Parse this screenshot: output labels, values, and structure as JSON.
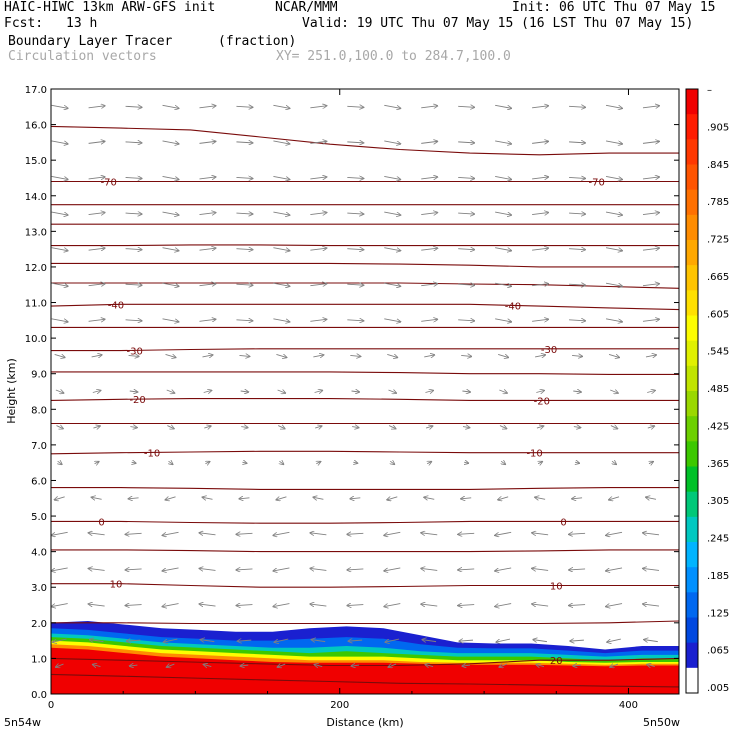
{
  "header": {
    "model": "HAIC-HIWC 13km ARW-GFS init",
    "org": "NCAR/MMM",
    "init": "Init: 06 UTC Thu 07 May 15",
    "fcst_label": "Fcst:",
    "fcst_value": "13 h",
    "valid": "Valid: 19 UTC Thu 07 May 15 (16 LST Thu 07 May 15)",
    "field": "Boundary Layer Tracer",
    "units": "(fraction)",
    "vectors": "Circulation vectors",
    "xy": "XY= 251.0,100.0 to 284.7,100.0"
  },
  "chart_data": {
    "type": "heatmap",
    "xlabel": "Distance (km)",
    "ylabel": "Height (km)",
    "xlim": [
      0,
      435
    ],
    "ylim": [
      0,
      17
    ],
    "x_ticks": [
      0,
      200,
      400
    ],
    "y_ticks": [
      "0.0",
      "1.0",
      "2.0",
      "3.0",
      "4.0",
      "5.0",
      "6.0",
      "7.0",
      "8.0",
      "9.0",
      "10.0",
      "11.0",
      "12.0",
      "13.0",
      "14.0",
      "15.0",
      "16.0",
      "17.0"
    ],
    "x_endpoints": {
      "left": "5n54w",
      "right": "5n50w"
    },
    "colorbar": {
      "labels": [
        "–",
        ".905",
        ".845",
        ".785",
        ".725",
        ".665",
        ".605",
        ".545",
        ".485",
        ".425",
        ".365",
        ".305",
        ".245",
        ".185",
        ".125",
        ".065",
        ".005"
      ],
      "colors": [
        "#f00000",
        "#ff1c00",
        "#ff3800",
        "#ff5400",
        "#ff7000",
        "#ff8c00",
        "#ffa800",
        "#ffc400",
        "#ffe000",
        "#fdfd00",
        "#e0f000",
        "#c0e400",
        "#9ad800",
        "#6ccf00",
        "#3cc800",
        "#00c028",
        "#00c878",
        "#00c8c0",
        "#00b4ff",
        "#0090ff",
        "#0068f0",
        "#0048e0",
        "#1a20d0",
        "#ffffff"
      ]
    },
    "tracer_layers": [
      {
        "level": 0.02,
        "color": "#1a20d0",
        "top_km": [
          2.0,
          2.05,
          1.95,
          1.85,
          1.8,
          1.75,
          1.75,
          1.85,
          1.9,
          1.85,
          1.65,
          1.45,
          1.42,
          1.42,
          1.35,
          1.25,
          1.35,
          1.35
        ]
      },
      {
        "level": 0.1,
        "color": "#0068f0",
        "top_km": [
          1.85,
          1.8,
          1.7,
          1.6,
          1.55,
          1.5,
          1.5,
          1.55,
          1.6,
          1.55,
          1.4,
          1.3,
          1.28,
          1.28,
          1.22,
          1.15,
          1.22,
          1.22
        ]
      },
      {
        "level": 0.3,
        "color": "#00c8c0",
        "top_km": [
          1.7,
          1.65,
          1.55,
          1.45,
          1.4,
          1.35,
          1.3,
          1.3,
          1.35,
          1.3,
          1.2,
          1.15,
          1.15,
          1.15,
          1.1,
          1.05,
          1.1,
          1.1
        ]
      },
      {
        "level": 0.5,
        "color": "#3cc800",
        "top_km": [
          1.6,
          1.55,
          1.45,
          1.35,
          1.3,
          1.25,
          1.2,
          1.15,
          1.2,
          1.15,
          1.1,
          1.05,
          1.05,
          1.05,
          1.0,
          0.95,
          1.0,
          1.0
        ]
      },
      {
        "level": 0.65,
        "color": "#fdfd00",
        "top_km": [
          1.5,
          1.45,
          1.35,
          1.25,
          1.2,
          1.15,
          1.1,
          1.05,
          1.05,
          1.05,
          1.0,
          0.95,
          0.95,
          0.95,
          0.9,
          0.88,
          0.9,
          0.9
        ]
      },
      {
        "level": 0.8,
        "color": "#ff8c00",
        "top_km": [
          1.4,
          1.35,
          1.25,
          1.15,
          1.1,
          1.05,
          1.0,
          0.95,
          0.95,
          0.95,
          0.9,
          0.88,
          0.88,
          0.88,
          0.85,
          0.82,
          0.85,
          0.85
        ]
      },
      {
        "level": 0.95,
        "color": "#f00000",
        "top_km": [
          1.3,
          1.25,
          1.15,
          1.05,
          1.0,
          0.95,
          0.9,
          0.88,
          0.88,
          0.88,
          0.85,
          0.82,
          0.82,
          0.82,
          0.8,
          0.78,
          0.8,
          0.8
        ]
      }
    ],
    "temperature_contours": [
      {
        "label": "-70",
        "heights_km": [
          14.4,
          14.4,
          14.4,
          14.4,
          14.4,
          14.4,
          14.4,
          14.4,
          14.4,
          14.4
        ],
        "labels_at_x": [
          40,
          378
        ]
      },
      {
        "label": "-40",
        "heights_km": [
          10.9,
          10.95,
          10.95,
          10.95,
          10.95,
          10.95,
          10.95,
          10.9,
          10.85,
          10.8
        ],
        "labels_at_x": [
          45,
          320
        ]
      },
      {
        "label": "-30",
        "heights_km": [
          9.65,
          9.65,
          9.68,
          9.7,
          9.7,
          9.7,
          9.7,
          9.7,
          9.7,
          9.7
        ],
        "labels_at_x": [
          58,
          345
        ]
      },
      {
        "label": "-20",
        "heights_km": [
          8.25,
          8.28,
          8.3,
          8.3,
          8.3,
          8.28,
          8.25,
          8.25,
          8.25,
          8.25
        ],
        "labels_at_x": [
          60,
          340
        ]
      },
      {
        "label": "-10",
        "heights_km": [
          6.75,
          6.78,
          6.8,
          6.82,
          6.82,
          6.8,
          6.78,
          6.78,
          6.78,
          6.78
        ],
        "labels_at_x": [
          70,
          335
        ]
      },
      {
        "label": "0",
        "heights_km": [
          4.85,
          4.85,
          4.82,
          4.8,
          4.8,
          4.82,
          4.85,
          4.85,
          4.85,
          4.85
        ],
        "labels_at_x": [
          35,
          355
        ]
      },
      {
        "label": "10",
        "heights_km": [
          3.1,
          3.1,
          3.05,
          3.0,
          3.0,
          3.02,
          3.05,
          3.05,
          3.05,
          3.05
        ],
        "labels_at_x": [
          45,
          350
        ]
      },
      {
        "label": "20",
        "heights_km": [
          1.0,
          0.95,
          0.9,
          0.85,
          0.8,
          0.8,
          0.85,
          0.95,
          0.95,
          1.0
        ],
        "labels_at_x": [
          350
        ]
      }
    ],
    "unlabeled_contours_km": [
      [
        15.95,
        15.9,
        15.85,
        15.65,
        15.45,
        15.3,
        15.2,
        15.15,
        15.2,
        15.2
      ],
      [
        13.75,
        13.75,
        13.75,
        13.75,
        13.75,
        13.75,
        13.75,
        13.75,
        13.75,
        13.75
      ],
      [
        13.2,
        13.2,
        13.2,
        13.2,
        13.2,
        13.2,
        13.2,
        13.2,
        13.2,
        13.2
      ],
      [
        12.6,
        12.6,
        12.62,
        12.62,
        12.6,
        12.6,
        12.6,
        12.6,
        12.6,
        12.6
      ],
      [
        12.1,
        12.1,
        12.1,
        12.1,
        12.1,
        12.08,
        12.05,
        12.0,
        12.0,
        12.0
      ],
      [
        11.55,
        11.55,
        11.55,
        11.55,
        11.55,
        11.55,
        11.52,
        11.5,
        11.45,
        11.4
      ],
      [
        10.3,
        10.3,
        10.3,
        10.3,
        10.3,
        10.3,
        10.3,
        10.3,
        10.3,
        10.3
      ],
      [
        9.05,
        9.05,
        9.05,
        9.05,
        9.05,
        9.03,
        9.0,
        9.0,
        8.98,
        8.98
      ],
      [
        7.6,
        7.6,
        7.6,
        7.6,
        7.6,
        7.6,
        7.6,
        7.6,
        7.6,
        7.6
      ],
      [
        5.8,
        5.8,
        5.78,
        5.75,
        5.75,
        5.75,
        5.75,
        5.78,
        5.8,
        5.8
      ],
      [
        4.05,
        4.05,
        4.03,
        4.0,
        4.0,
        4.0,
        4.0,
        4.02,
        4.05,
        4.05
      ],
      [
        2.0,
        2.0,
        1.98,
        1.98,
        1.98,
        1.98,
        1.98,
        1.98,
        2.0,
        2.05
      ],
      [
        0.55,
        0.5,
        0.45,
        0.4,
        0.35,
        0.3,
        0.28,
        0.25,
        0.22,
        0.2
      ]
    ],
    "vector_field": {
      "description_rows_km": [
        16.5,
        15.5,
        14.5,
        13.5,
        12.5,
        11.5,
        10.5,
        9.5,
        8.5,
        7.5,
        6.5,
        5.5,
        4.5,
        3.5,
        2.5,
        1.5,
        0.8
      ],
      "u_direction": [
        1,
        1,
        1,
        1,
        1,
        1,
        1,
        0.5,
        0.3,
        0.2,
        0,
        -0.5,
        -1,
        -1,
        -1,
        -0.8,
        -0.3
      ]
    }
  }
}
